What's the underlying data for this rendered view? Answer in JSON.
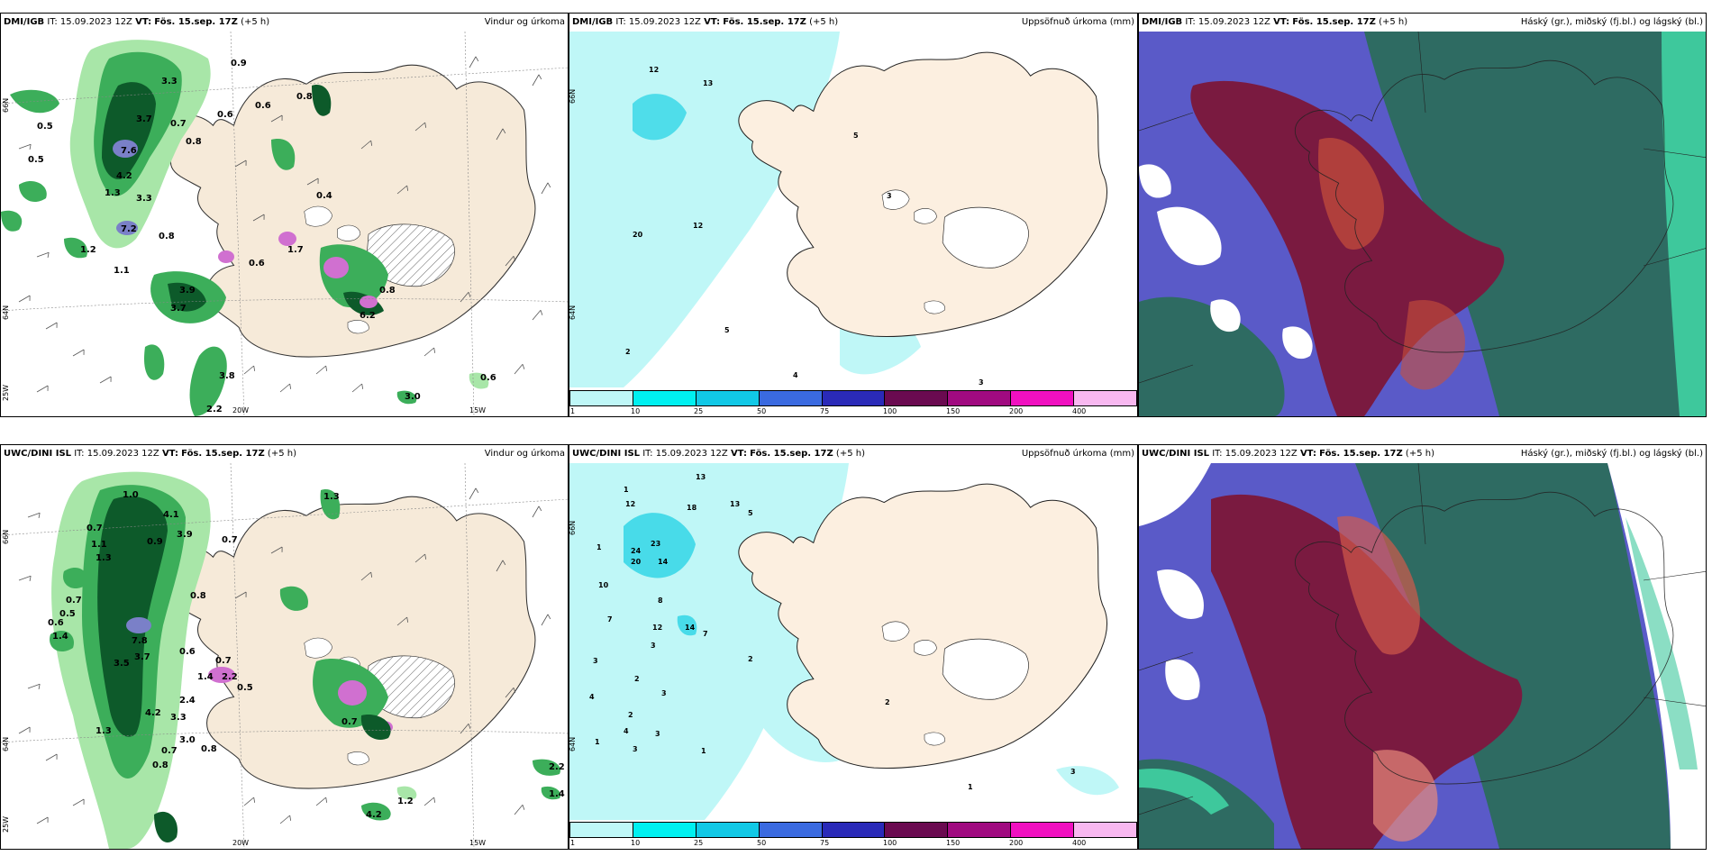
{
  "panels": {
    "p1": {
      "model": "DMI/IGB",
      "it_label": "IT:",
      "it_value": "15.09.2023 12Z",
      "vt_label": "VT:",
      "vt_value": "Fös. 15.sep. 17Z",
      "offset": "(+5 h)",
      "right_title": "Vindur og úrkoma"
    },
    "p2": {
      "model": "DMI/IGB",
      "it_label": "IT:",
      "it_value": "15.09.2023 12Z",
      "vt_label": "VT:",
      "vt_value": "Fös. 15.sep. 17Z",
      "offset": "(+5 h)",
      "right_title": "Uppsöfnuð úrkoma (mm)"
    },
    "p3": {
      "model": "DMI/IGB",
      "it_label": "IT:",
      "it_value": "15.09.2023 12Z",
      "vt_label": "VT:",
      "vt_value": "Fös. 15.sep. 17Z",
      "offset": "(+5 h)",
      "right_title": "Háský (gr.), miðský (fj.bl.) og lágský (bl.)"
    },
    "p4": {
      "model": "UWC/DINI ISL",
      "it_label": "IT:",
      "it_value": "15.09.2023 12Z",
      "vt_label": "VT:",
      "vt_value": "Fös. 15.sep. 17Z",
      "offset": "(+5 h)",
      "right_title": "Vindur og úrkoma"
    },
    "p5": {
      "model": "UWC/DINI ISL",
      "it_label": "IT:",
      "it_value": "15.09.2023 12Z",
      "vt_label": "VT:",
      "vt_value": "Fös. 15.sep. 17Z",
      "offset": "(+5 h)",
      "right_title": "Uppsöfnuð úrkoma (mm)"
    },
    "p6": {
      "model": "UWC/DINI ISL",
      "it_label": "IT:",
      "it_value": "15.09.2023 12Z",
      "vt_label": "VT:",
      "vt_value": "Fös. 15.sep. 17Z",
      "offset": "(+5 h)",
      "right_title": "Háský (gr.), miðský (fj.bl.) og lágský (bl.)"
    }
  },
  "axes": {
    "lat_66": "66N",
    "lat_64": "64N",
    "lon_20w": "20W",
    "lon_15w": "15W",
    "lon_25w": "25W"
  },
  "colorbar": {
    "ticks": [
      "1",
      "10",
      "25",
      "50",
      "75",
      "100",
      "150",
      "200",
      "400"
    ],
    "colors": [
      "#bff7f7",
      "#00f0f0",
      "#11c8e6",
      "#3a6ae0",
      "#2a2ab8",
      "#6a0a50",
      "#a00a80",
      "#f010c0",
      "#f8b8f0"
    ]
  },
  "colors": {
    "land": "#f6ead9",
    "ice": "#ffffff",
    "precip_light": "#a8e6a8",
    "precip_med": "#3cae5a",
    "precip_heavy": "#0d5a2a",
    "precip_vheavy": "#7a80c8",
    "precip_extreme": "#d070d0",
    "accum_light": "#bff7f7",
    "accum_med": "#00f0f0",
    "cloud_high": "#2e6b62",
    "cloud_mid": "#7a1a40",
    "cloud_low": "#5a5ac8",
    "cloud_coast": "#3ec89c"
  },
  "precip_labels_top": [
    "0.9",
    "3.3",
    "0.5",
    "3.7",
    "0.7",
    "0.8",
    "0.6",
    "0.6",
    "0.8",
    "7.6",
    "4.2",
    "1.3",
    "3.3",
    "0.5",
    "7.2",
    "0.8",
    "1.2",
    "0.4",
    "1.7",
    "1.1",
    "3.9",
    "3.7",
    "0.6",
    "0.8",
    "6.2",
    "3.8",
    "0.6",
    "3.0",
    "2.2"
  ],
  "precip_labels_bottom": [
    "1.0",
    "4.1",
    "3.9",
    "0.7",
    "1.1",
    "0.9",
    "1.3",
    "0.7",
    "0.8",
    "0.5",
    "1.4",
    "0.6",
    "7.8",
    "3.5",
    "3.7",
    "0.6",
    "1.4",
    "0.7",
    "2.2",
    "0.5",
    "4.2",
    "3.3",
    "2.4",
    "3.0",
    "0.7",
    "0.8",
    "1.3",
    "0.7",
    "0.8",
    "1.3",
    "0.7",
    "2.2",
    "1.4",
    "1.2",
    "4.2"
  ],
  "accum_labels_top": [
    "12",
    "13",
    "5",
    "3",
    "12",
    "20",
    "5",
    "2",
    "4",
    "3"
  ],
  "accum_labels_bottom": [
    "13",
    "12",
    "18",
    "13",
    "5",
    "24",
    "23",
    "20",
    "14",
    "1",
    "10",
    "8",
    "7",
    "14",
    "12",
    "7",
    "2",
    "3",
    "4",
    "1",
    "3",
    "2",
    "3",
    "4",
    "2",
    "3",
    "1",
    "3",
    "1",
    "2",
    "3",
    "1"
  ]
}
